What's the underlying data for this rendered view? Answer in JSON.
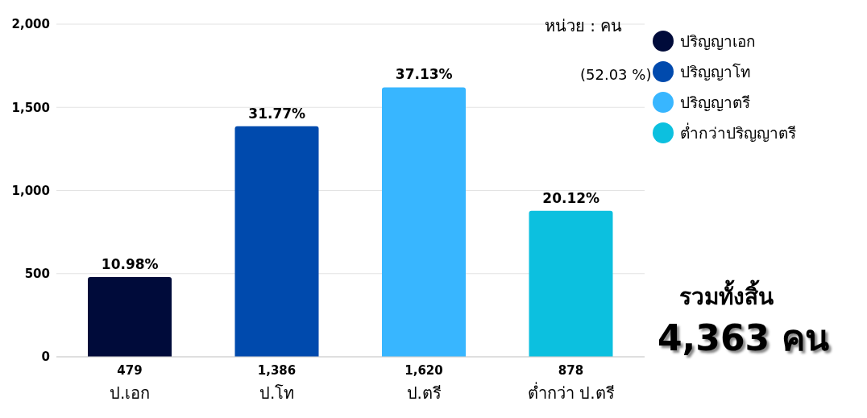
{
  "chart_data": {
    "type": "bar",
    "stacked": true,
    "categories": [
      "ป.เอก",
      "ป.โท",
      "ป.ตรี",
      "ต่ำกว่า ป.ตรี"
    ],
    "series": [
      {
        "name": "ปริญญาเอก",
        "color": "#000b3a",
        "values": [
          479,
          null,
          null,
          null
        ],
        "value_labels": [
          "479",
          null,
          null,
          null
        ]
      },
      {
        "name": "ปริญญาโท",
        "color": "#004aad",
        "values": [
          null,
          1386,
          null,
          null
        ],
        "value_labels": [
          null,
          "1,386",
          null,
          null
        ]
      },
      {
        "name": "ปริญญาตรี",
        "color": "#38b6ff",
        "values": [
          null,
          null,
          1620,
          null
        ],
        "value_labels": [
          null,
          null,
          "1,620",
          null
        ]
      },
      {
        "name": "ต่ำกว่าปริญญาตรี",
        "color": "#0cc0df",
        "values": [
          null,
          null,
          null,
          878
        ],
        "value_labels": [
          null,
          null,
          null,
          "878"
        ]
      }
    ],
    "ylim": [
      0,
      2000
    ],
    "yticks": [
      {
        "value": 0,
        "label": "0"
      },
      {
        "value": 500,
        "label": "500"
      },
      {
        "value": 1000,
        "label": "1,000"
      },
      {
        "value": 1500,
        "label": "1,500"
      },
      {
        "value": 2000,
        "label": "2,000"
      }
    ],
    "grid": "y",
    "legend": "top right",
    "annotations": [
      "หน่วย : คน",
      "(52.03 %)",
      "รวมทั้งสิ้น",
      "4,363 คน",
      {
        "text": "10.98%",
        "x": "ป.เอก",
        "y": 479
      },
      {
        "text": "31.77%",
        "x": "ป.โท",
        "y": 1386
      },
      {
        "text": "37.13%",
        "x": "ป.ตรี",
        "y": 1620
      },
      {
        "text": "20.12%",
        "x": "ต่ำกว่า ป.ตรี",
        "y": 878
      }
    ]
  }
}
